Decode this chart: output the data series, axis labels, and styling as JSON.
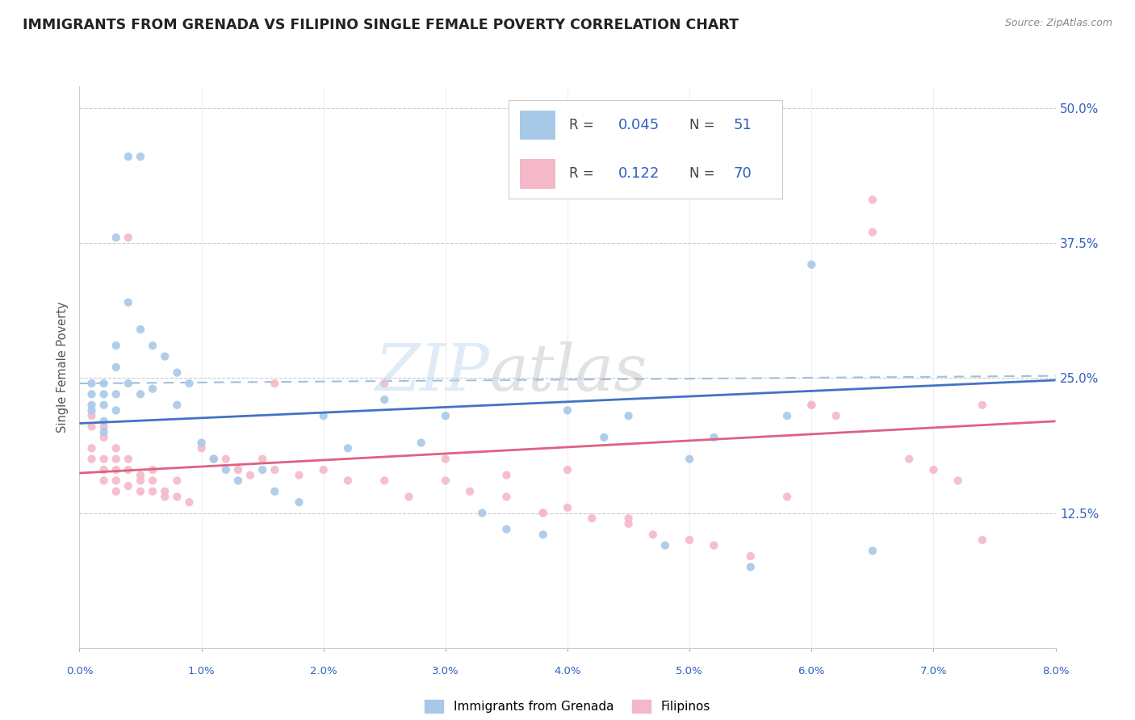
{
  "title": "IMMIGRANTS FROM GRENADA VS FILIPINO SINGLE FEMALE POVERTY CORRELATION CHART",
  "source": "Source: ZipAtlas.com",
  "ylabel": "Single Female Poverty",
  "xlim": [
    0.0,
    0.08
  ],
  "ylim": [
    0.0,
    0.52
  ],
  "yticks": [
    0.0,
    0.125,
    0.25,
    0.375,
    0.5
  ],
  "ytick_labels": [
    "",
    "12.5%",
    "25.0%",
    "37.5%",
    "50.0%"
  ],
  "xtick_labels": [
    "0.0%",
    "1.0%",
    "2.0%",
    "3.0%",
    "4.0%",
    "5.0%",
    "6.0%",
    "7.0%",
    "8.0%"
  ],
  "legend_r1": "0.045",
  "legend_n1": "51",
  "legend_r2": "0.122",
  "legend_n2": "70",
  "color_blue": "#a8c8e8",
  "color_blue_line": "#4472c4",
  "color_pink": "#f4b8c8",
  "color_pink_line": "#e06080",
  "color_dashed": "#a0c0e0",
  "blue_line_x0": 0.0,
  "blue_line_y0": 0.208,
  "blue_line_x1": 0.08,
  "blue_line_y1": 0.248,
  "pink_line_x0": 0.0,
  "pink_line_y0": 0.162,
  "pink_line_x1": 0.08,
  "pink_line_y1": 0.21,
  "dashed_line_x0": 0.0,
  "dashed_line_y0": 0.245,
  "dashed_line_x1": 0.08,
  "dashed_line_y1": 0.252,
  "blue_x": [
    0.001,
    0.001,
    0.001,
    0.001,
    0.002,
    0.002,
    0.002,
    0.002,
    0.002,
    0.003,
    0.003,
    0.003,
    0.003,
    0.003,
    0.004,
    0.004,
    0.004,
    0.005,
    0.005,
    0.005,
    0.006,
    0.006,
    0.007,
    0.008,
    0.008,
    0.009,
    0.01,
    0.011,
    0.012,
    0.013,
    0.015,
    0.016,
    0.018,
    0.02,
    0.022,
    0.025,
    0.028,
    0.03,
    0.033,
    0.035,
    0.038,
    0.04,
    0.043,
    0.045,
    0.048,
    0.05,
    0.052,
    0.055,
    0.06,
    0.065,
    0.058
  ],
  "blue_y": [
    0.245,
    0.235,
    0.225,
    0.22,
    0.245,
    0.235,
    0.225,
    0.21,
    0.2,
    0.38,
    0.28,
    0.26,
    0.235,
    0.22,
    0.455,
    0.32,
    0.245,
    0.455,
    0.295,
    0.235,
    0.28,
    0.24,
    0.27,
    0.255,
    0.225,
    0.245,
    0.19,
    0.175,
    0.165,
    0.155,
    0.165,
    0.145,
    0.135,
    0.215,
    0.185,
    0.23,
    0.19,
    0.215,
    0.125,
    0.11,
    0.105,
    0.22,
    0.195,
    0.215,
    0.095,
    0.175,
    0.195,
    0.075,
    0.355,
    0.09,
    0.215
  ],
  "pink_x": [
    0.001,
    0.001,
    0.001,
    0.001,
    0.002,
    0.002,
    0.002,
    0.002,
    0.002,
    0.003,
    0.003,
    0.003,
    0.003,
    0.003,
    0.004,
    0.004,
    0.004,
    0.004,
    0.005,
    0.005,
    0.005,
    0.006,
    0.006,
    0.006,
    0.007,
    0.007,
    0.008,
    0.008,
    0.009,
    0.01,
    0.011,
    0.012,
    0.013,
    0.014,
    0.015,
    0.016,
    0.018,
    0.02,
    0.022,
    0.025,
    0.027,
    0.03,
    0.032,
    0.035,
    0.038,
    0.04,
    0.042,
    0.045,
    0.047,
    0.05,
    0.052,
    0.055,
    0.058,
    0.06,
    0.062,
    0.065,
    0.068,
    0.07,
    0.072,
    0.074,
    0.016,
    0.025,
    0.03,
    0.035,
    0.038,
    0.04,
    0.045,
    0.06,
    0.065,
    0.074
  ],
  "pink_y": [
    0.215,
    0.205,
    0.185,
    0.175,
    0.205,
    0.195,
    0.175,
    0.165,
    0.155,
    0.185,
    0.175,
    0.165,
    0.155,
    0.145,
    0.38,
    0.175,
    0.165,
    0.15,
    0.16,
    0.155,
    0.145,
    0.165,
    0.155,
    0.145,
    0.145,
    0.14,
    0.155,
    0.14,
    0.135,
    0.185,
    0.175,
    0.175,
    0.165,
    0.16,
    0.175,
    0.165,
    0.16,
    0.165,
    0.155,
    0.155,
    0.14,
    0.155,
    0.145,
    0.14,
    0.125,
    0.13,
    0.12,
    0.115,
    0.105,
    0.1,
    0.095,
    0.085,
    0.14,
    0.225,
    0.215,
    0.415,
    0.175,
    0.165,
    0.155,
    0.1,
    0.245,
    0.245,
    0.175,
    0.16,
    0.125,
    0.165,
    0.12,
    0.225,
    0.385,
    0.225
  ]
}
